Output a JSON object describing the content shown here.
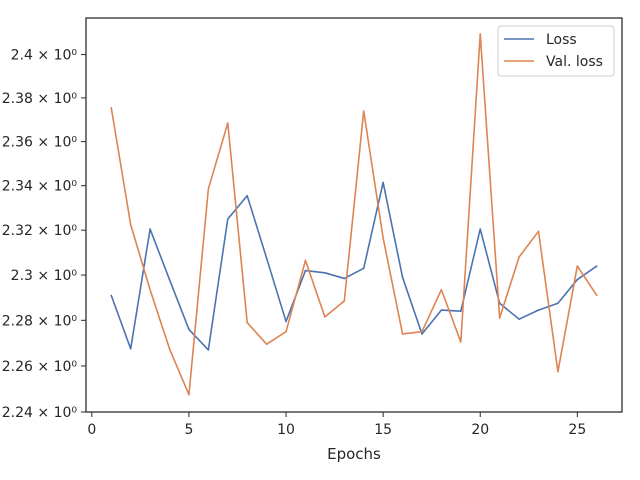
{
  "chart_data": {
    "type": "line",
    "xlabel": "Epochs",
    "ylabel": "",
    "xlim": [
      -0.3,
      27.3
    ],
    "ylim": [
      2.24,
      2.417
    ],
    "y_scale": "log",
    "grid": false,
    "legend_placement": "top-right",
    "x_ticks": [
      0,
      5,
      10,
      15,
      20,
      25
    ],
    "x_tick_labels": [
      "0",
      "5",
      "10",
      "15",
      "20",
      "25"
    ],
    "y_ticks": [
      2.24,
      2.26,
      2.28,
      2.3,
      2.32,
      2.34,
      2.36,
      2.38,
      2.4
    ],
    "y_tick_labels": [
      "2.24 × 10⁰",
      "2.26 × 10⁰",
      "2.28 × 10⁰",
      "2.3 × 10⁰",
      "2.32 × 10⁰",
      "2.34 × 10⁰",
      "2.36 × 10⁰",
      "2.38 × 10⁰",
      "2.4 × 10⁰"
    ],
    "x": [
      1,
      2,
      3,
      4,
      5,
      6,
      7,
      8,
      9,
      10,
      11,
      12,
      13,
      14,
      15,
      16,
      17,
      18,
      19,
      20,
      21,
      22,
      23,
      24,
      25,
      26
    ],
    "series": [
      {
        "name": "Loss",
        "color": "#4c72b0",
        "values": [
          2.291,
          2.2675,
          2.3205,
          2.298,
          2.276,
          2.267,
          2.325,
          2.3355,
          2.3075,
          2.2795,
          2.302,
          2.301,
          2.2985,
          2.303,
          2.3415,
          2.299,
          2.274,
          2.2845,
          2.284,
          2.3205,
          2.2875,
          2.2805,
          2.2845,
          2.2875,
          2.298,
          2.304
        ]
      },
      {
        "name": "Val. loss",
        "color": "#dd8452",
        "values": [
          2.3755,
          2.3225,
          2.2935,
          2.2675,
          2.2475,
          2.3385,
          2.3685,
          2.279,
          2.2695,
          2.275,
          2.3065,
          2.2815,
          2.2885,
          2.374,
          2.3165,
          2.274,
          2.275,
          2.2935,
          2.2705,
          2.4095,
          2.281,
          2.308,
          2.3195,
          2.2575,
          2.304,
          2.291
        ]
      }
    ]
  }
}
